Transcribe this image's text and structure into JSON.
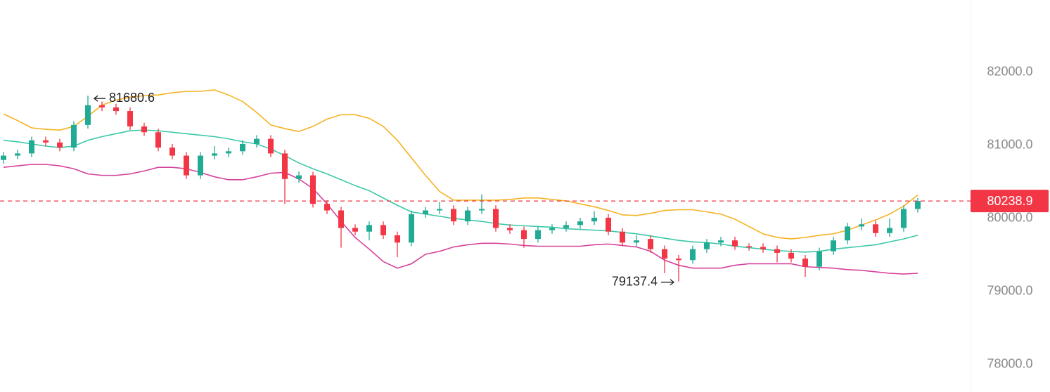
{
  "chart_data": {
    "type": "candlestick",
    "ylim": [
      77625,
      82990
    ],
    "yticks": [
      {
        "value": 78000,
        "label": "78000.0"
      },
      {
        "value": 79000,
        "label": "79000.0"
      },
      {
        "value": 80000,
        "label": "80000.0"
      },
      {
        "value": 81000,
        "label": "81000.0"
      },
      {
        "value": 82000,
        "label": "82000.0"
      }
    ],
    "grid": false,
    "up_color": "#22ab94",
    "down_color": "#f23645",
    "open": [
      80800,
      80860,
      80890,
      81070,
      81040,
      80970,
      81280,
      81550,
      81520,
      81470,
      81260,
      81180,
      80970,
      80860,
      80590,
      80860,
      80890,
      80920,
      81020,
      81090,
      80890,
      80540,
      80590,
      80200,
      80110,
      79870,
      79820,
      79910,
      79770,
      79670,
      80060,
      80110,
      80130,
      79960,
      80110,
      80130,
      79870,
      79840,
      79720,
      79840,
      79870,
      79910,
      79960,
      80010,
      79820,
      79670,
      79720,
      79580,
      79450,
      79430,
      79580,
      79670,
      79700,
      79620,
      79610,
      79580,
      79530,
      79450,
      79340,
      79550,
      79700,
      79890,
      79920,
      79800,
      79870,
      80130
    ],
    "high": [
      80910,
      80940,
      81120,
      81120,
      81090,
      81330,
      81680.6,
      81600,
      81570,
      81520,
      81310,
      81230,
      81020,
      80910,
      80910,
      80990,
      80970,
      81070,
      81140,
      81140,
      80940,
      80640,
      80640,
      80250,
      80160,
      79920,
      79960,
      79960,
      79820,
      80110,
      80160,
      80230,
      80180,
      80160,
      80330,
      80180,
      79920,
      79890,
      79890,
      79920,
      79960,
      80010,
      80100,
      80060,
      79870,
      79770,
      79770,
      79630,
      79500,
      79630,
      79720,
      79750,
      79750,
      79660,
      79660,
      79630,
      79580,
      79500,
      79600,
      79750,
      79940,
      80000,
      79970,
      80000,
      80180,
      80280
    ],
    "low": [
      80750,
      80810,
      80840,
      80990,
      80920,
      80920,
      81230,
      81470,
      81420,
      81210,
      81130,
      80920,
      80810,
      80540,
      80540,
      80810,
      80840,
      80870,
      80970,
      80840,
      80200,
      80490,
      80150,
      80060,
      79600,
      79770,
      79700,
      79720,
      79470,
      79620,
      80010,
      80060,
      79910,
      79910,
      80060,
      79820,
      79790,
      79600,
      79670,
      79790,
      79820,
      79860,
      79910,
      79770,
      79620,
      79620,
      79530,
      79250,
      79137.4,
      79380,
      79530,
      79620,
      79570,
      79560,
      79530,
      79400,
      79400,
      79200,
      79290,
      79500,
      79650,
      79840,
      79750,
      79750,
      79820,
      80080
    ],
    "close": [
      80860,
      80890,
      81070,
      81040,
      80970,
      81280,
      81550,
      81520,
      81470,
      81260,
      81180,
      80970,
      80860,
      80590,
      80860,
      80890,
      80920,
      81020,
      81090,
      80890,
      80540,
      80590,
      80200,
      80110,
      79870,
      79820,
      79910,
      79770,
      79670,
      80060,
      80110,
      80130,
      79960,
      80110,
      80130,
      79870,
      79840,
      79720,
      79840,
      79870,
      79910,
      79960,
      80010,
      79820,
      79670,
      79700,
      79580,
      79450,
      79430,
      79580,
      79670,
      79700,
      79620,
      79610,
      79580,
      79530,
      79450,
      79340,
      79550,
      79700,
      79890,
      79920,
      79800,
      79870,
      80130,
      80238.9
    ],
    "bands": [
      {
        "color": "#f5b324",
        "values": [
          81430,
          81340,
          81240,
          81220,
          81210,
          81260,
          81400,
          81550,
          81620,
          81660,
          81680,
          81690,
          81720,
          81740,
          81740,
          81760,
          81690,
          81600,
          81450,
          81280,
          81230,
          81190,
          81260,
          81360,
          81420,
          81420,
          81370,
          81260,
          81070,
          80830,
          80590,
          80370,
          80250,
          80250,
          80250,
          80250,
          80260,
          80280,
          80280,
          80260,
          80240,
          80200,
          80160,
          80110,
          80050,
          80040,
          80070,
          80110,
          80120,
          80120,
          80090,
          80060,
          79990,
          79890,
          79790,
          79740,
          79720,
          79740,
          79770,
          79790,
          79840,
          79910,
          79980,
          80060,
          80170,
          80320
        ]
      },
      {
        "color": "#3cc8a8",
        "values": [
          81070,
          81050,
          81020,
          80990,
          80970,
          80990,
          81070,
          81120,
          81160,
          81200,
          81210,
          81200,
          81180,
          81160,
          81140,
          81120,
          81090,
          81050,
          81020,
          80950,
          80860,
          80760,
          80680,
          80610,
          80530,
          80450,
          80380,
          80280,
          80180,
          80090,
          80060,
          80030,
          80000,
          79980,
          79960,
          79930,
          79910,
          79900,
          79890,
          79880,
          79860,
          79850,
          79840,
          79830,
          79810,
          79790,
          79760,
          79730,
          79700,
          79680,
          79670,
          79650,
          79620,
          79600,
          79580,
          79560,
          79550,
          79540,
          79550,
          79580,
          79600,
          79620,
          79640,
          79680,
          79720,
          79770
        ]
      },
      {
        "color": "#d6429c",
        "values": [
          80700,
          80720,
          80740,
          80740,
          80720,
          80680,
          80610,
          80590,
          80590,
          80610,
          80650,
          80700,
          80700,
          80680,
          80630,
          80570,
          80530,
          80530,
          80570,
          80620,
          80630,
          80540,
          80410,
          80200,
          79960,
          79740,
          79580,
          79410,
          79320,
          79380,
          79510,
          79550,
          79610,
          79640,
          79660,
          79660,
          79650,
          79630,
          79620,
          79620,
          79620,
          79620,
          79640,
          79650,
          79630,
          79610,
          79550,
          79430,
          79360,
          79320,
          79320,
          79320,
          79360,
          79380,
          79380,
          79380,
          79380,
          79340,
          79330,
          79320,
          79300,
          79290,
          79270,
          79250,
          79240,
          79250
        ]
      }
    ],
    "last_price": 80238.9,
    "last_price_label": "80238.9",
    "annotations": [
      {
        "text": "81680.6",
        "value": 81680.6,
        "index": 6
      },
      {
        "text": "79137.4",
        "value": 79137.4,
        "index": 48
      }
    ]
  }
}
